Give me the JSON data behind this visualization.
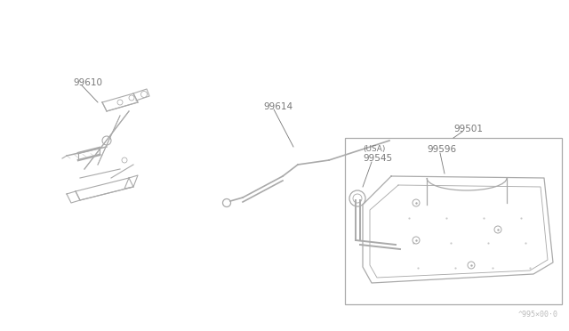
{
  "background_color": "#ffffff",
  "fig_width": 6.4,
  "fig_height": 3.72,
  "dpi": 100,
  "watermark": "^995×00·0",
  "line_color": "#aaaaaa",
  "label_color": "#777777",
  "label_fs": 7.0
}
